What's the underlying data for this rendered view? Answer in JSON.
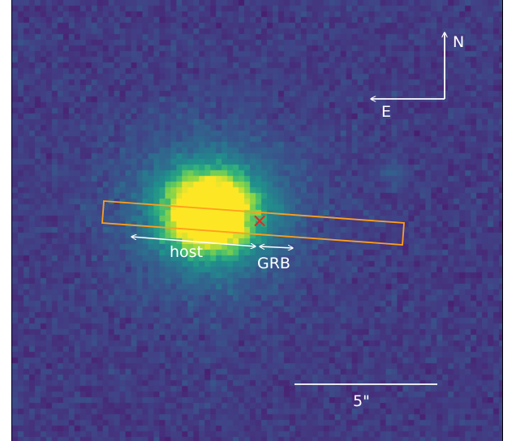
{
  "image": {
    "colormap": "viridis",
    "background_color": "#443983",
    "galaxy_core_color": "#fde725"
  },
  "annotations": {
    "compass": {
      "north_label": "N",
      "east_label": "E",
      "color": "#ffffff"
    },
    "slit": {
      "color": "#ff9f1c"
    },
    "grb_marker": {
      "symbol": "×",
      "color": "#e8271e"
    },
    "host_label": "host",
    "grb_label": "GRB",
    "scale_bar": {
      "label": "5\"",
      "color": "#ffffff"
    }
  }
}
